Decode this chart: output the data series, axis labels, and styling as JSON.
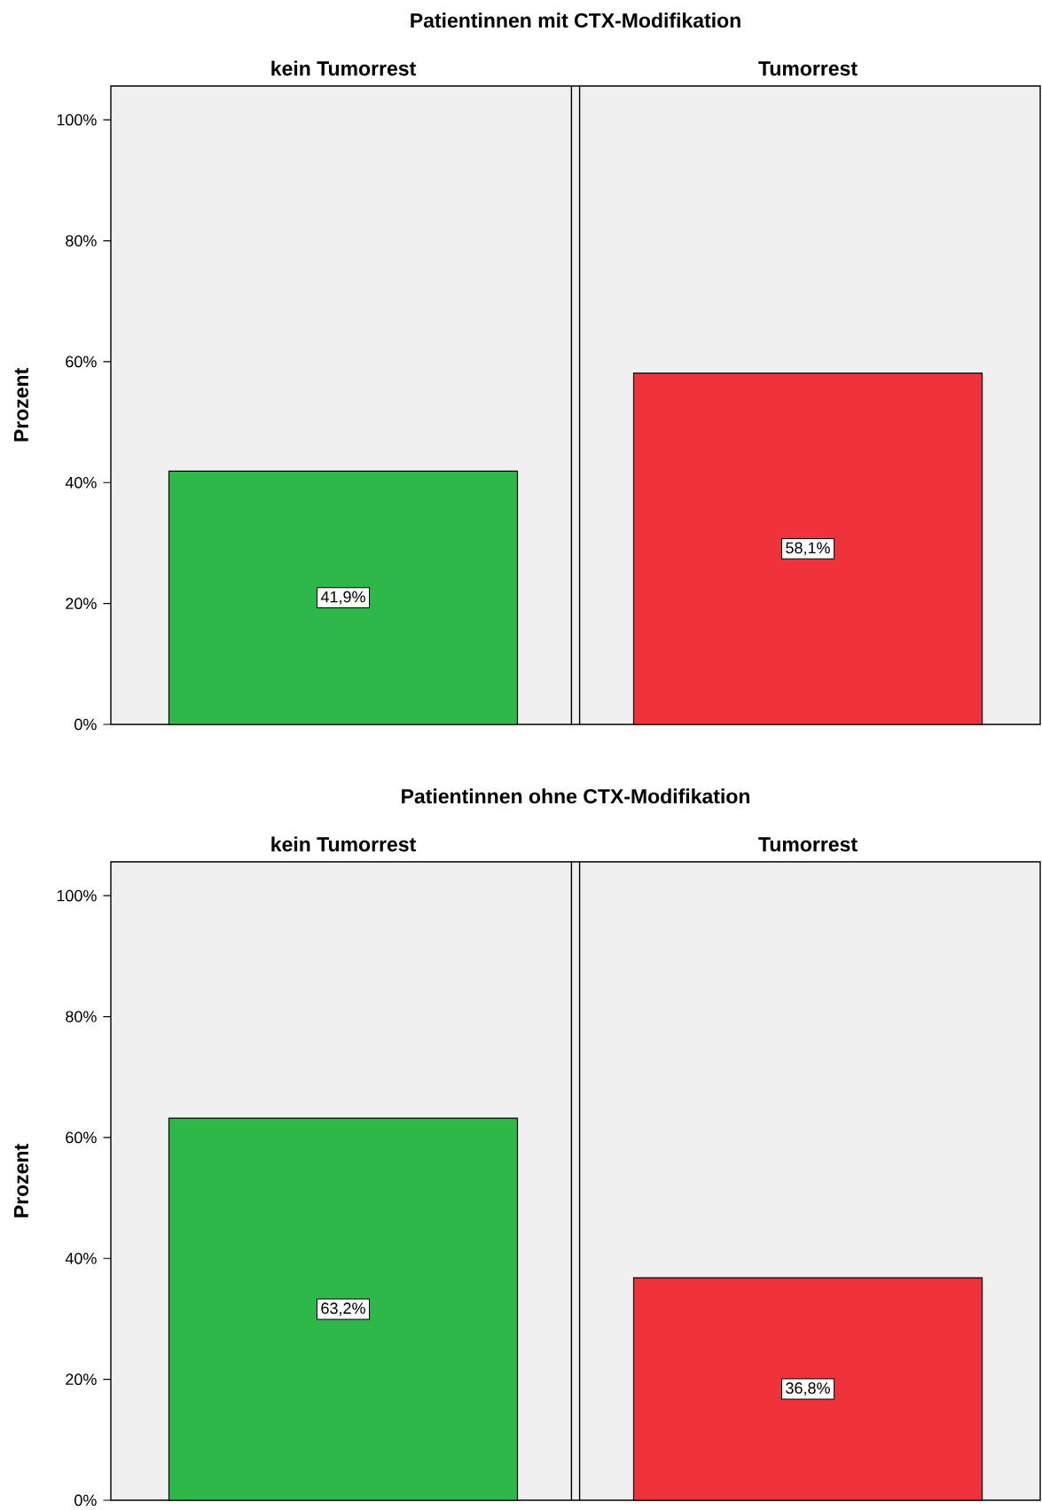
{
  "chart_data": [
    {
      "type": "bar",
      "title": "Patientinnen mit CTX-Modifikation",
      "ylabel": "Prozent",
      "categories": [
        "kein Tumorrest",
        "Tumorrest"
      ],
      "values": [
        41.9,
        58.1
      ],
      "colors": [
        "#2eb84a",
        "#f0323a"
      ],
      "value_labels": [
        "41,9%",
        "58,1%"
      ],
      "ylim": [
        0,
        105.6
      ],
      "yticks": [
        {
          "value": 0,
          "label": "0%"
        },
        {
          "value": 20,
          "label": "20%"
        },
        {
          "value": 40,
          "label": "40%"
        },
        {
          "value": 60,
          "label": "60%"
        },
        {
          "value": 80,
          "label": "80%"
        },
        {
          "value": 100,
          "label": "100%"
        }
      ]
    },
    {
      "type": "bar",
      "title": "Patientinnen ohne CTX-Modifikation",
      "ylabel": "Prozent",
      "categories": [
        "kein Tumorrest",
        "Tumorrest"
      ],
      "values": [
        63.2,
        36.8
      ],
      "colors": [
        "#2eb84a",
        "#f0323a"
      ],
      "value_labels": [
        "63,2%",
        "36,8%"
      ],
      "ylim": [
        0,
        105.6
      ],
      "yticks": [
        {
          "value": 0,
          "label": "0%"
        },
        {
          "value": 20,
          "label": "20%"
        },
        {
          "value": 40,
          "label": "40%"
        },
        {
          "value": 60,
          "label": "60%"
        },
        {
          "value": 80,
          "label": "80%"
        },
        {
          "value": 100,
          "label": "100%"
        }
      ]
    }
  ]
}
